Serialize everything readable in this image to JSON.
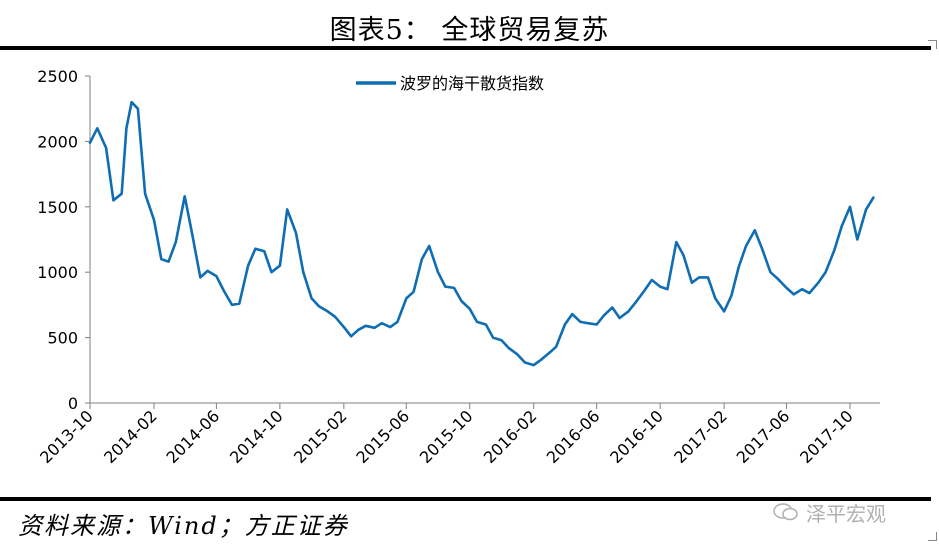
{
  "figure": {
    "title": "图表5： 全球贸易复苏",
    "source": "资料来源：Wind；方正证券",
    "watermark": "泽平宏观"
  },
  "colors": {
    "series": "#0f6db3",
    "axis": "#7f7f7f",
    "text": "#000000"
  },
  "chart_data": {
    "type": "line",
    "title": "",
    "xlabel": "",
    "ylabel": "",
    "ylim": [
      0,
      2500
    ],
    "yticks": [
      0,
      500,
      1000,
      1500,
      2000,
      2500
    ],
    "xticks": [
      "2013-10",
      "2014-02",
      "2014-06",
      "2014-10",
      "2015-02",
      "2015-06",
      "2015-10",
      "2016-02",
      "2016-06",
      "2016-10",
      "2017-02",
      "2017-06",
      "2017-10"
    ],
    "grid": false,
    "legend_position": "top-center",
    "series": [
      {
        "name": "波罗的海干散货指数",
        "x": [
          "2013-10",
          "2013-10-15",
          "2013-11",
          "2013-11-15",
          "2013-12",
          "2013-12-10",
          "2013-12-20",
          "2014-01",
          "2014-01-15",
          "2014-02",
          "2014-02-15",
          "2014-03",
          "2014-03-15",
          "2014-04",
          "2014-04-15",
          "2014-05",
          "2014-05-15",
          "2014-06",
          "2014-06-15",
          "2014-07",
          "2014-07-15",
          "2014-08",
          "2014-08-15",
          "2014-09",
          "2014-09-15",
          "2014-10",
          "2014-10-15",
          "2014-11",
          "2014-11-15",
          "2014-12",
          "2014-12-15",
          "2015-01",
          "2015-01-15",
          "2015-02",
          "2015-02-15",
          "2015-03",
          "2015-03-15",
          "2015-04",
          "2015-04-15",
          "2015-05",
          "2015-05-15",
          "2015-06",
          "2015-06-15",
          "2015-07",
          "2015-07-15",
          "2015-08",
          "2015-08-15",
          "2015-09",
          "2015-09-15",
          "2015-10",
          "2015-10-15",
          "2015-11",
          "2015-11-15",
          "2015-12",
          "2015-12-15",
          "2016-01",
          "2016-01-15",
          "2016-02",
          "2016-02-15",
          "2016-03",
          "2016-03-15",
          "2016-04",
          "2016-04-15",
          "2016-05",
          "2016-05-15",
          "2016-06",
          "2016-06-15",
          "2016-07",
          "2016-07-15",
          "2016-08",
          "2016-08-15",
          "2016-09",
          "2016-09-15",
          "2016-10",
          "2016-10-15",
          "2016-11",
          "2016-11-15",
          "2016-12",
          "2016-12-15",
          "2017-01",
          "2017-01-15",
          "2017-02",
          "2017-02-15",
          "2017-03",
          "2017-03-15",
          "2017-04",
          "2017-04-15",
          "2017-05",
          "2017-05-15",
          "2017-06",
          "2017-06-15",
          "2017-07",
          "2017-07-15",
          "2017-08",
          "2017-08-15",
          "2017-09",
          "2017-09-15",
          "2017-10",
          "2017-10-15",
          "2017-11",
          "2017-11-15"
        ],
        "values": [
          1990,
          2100,
          1950,
          1550,
          1600,
          2100,
          2300,
          2250,
          1600,
          1400,
          1100,
          1080,
          1230,
          1580,
          1300,
          960,
          1010,
          970,
          860,
          750,
          760,
          1050,
          1180,
          1160,
          1000,
          1050,
          1480,
          1300,
          1000,
          800,
          740,
          700,
          660,
          580,
          510,
          560,
          590,
          575,
          610,
          580,
          620,
          800,
          850,
          1100,
          1200,
          1000,
          890,
          880,
          780,
          720,
          620,
          600,
          500,
          480,
          420,
          370,
          310,
          290,
          330,
          380,
          430,
          600,
          680,
          620,
          610,
          600,
          670,
          730,
          650,
          700,
          770,
          860,
          940,
          890,
          870,
          1230,
          1130,
          920,
          960,
          960,
          800,
          700,
          820,
          1040,
          1200,
          1320,
          1180,
          1000,
          950,
          880,
          830,
          870,
          840,
          920,
          1000,
          1170,
          1350,
          1500,
          1250,
          1480,
          1570
        ]
      }
    ]
  }
}
